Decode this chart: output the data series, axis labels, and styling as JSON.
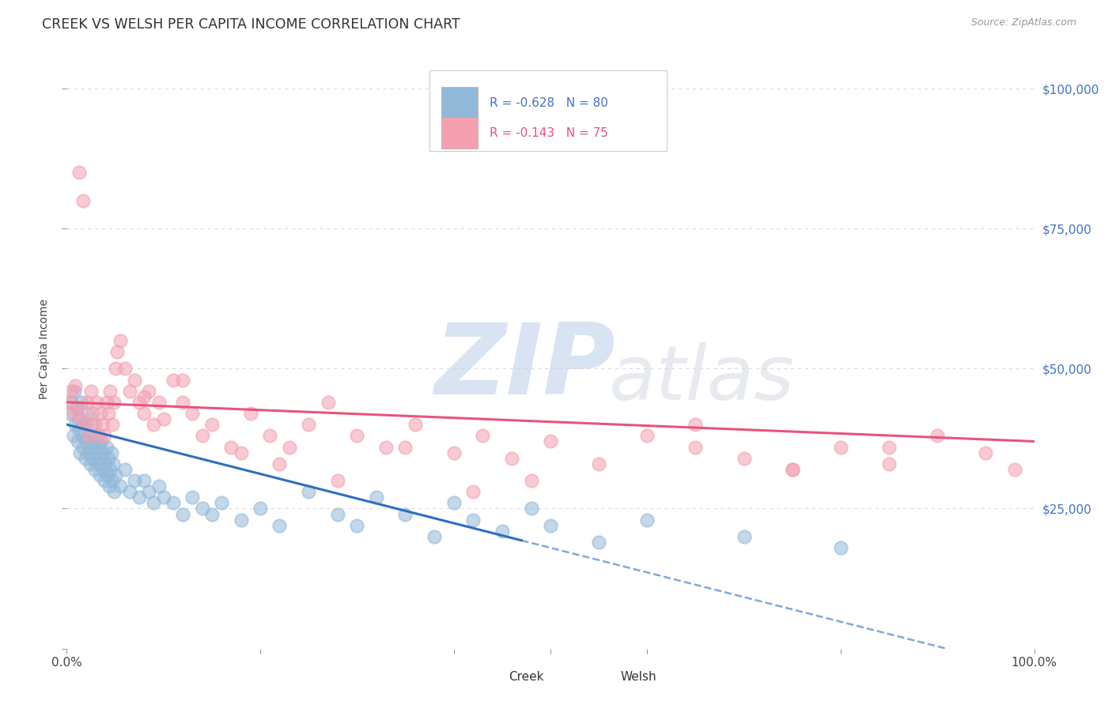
{
  "title": "CREEK VS WELSH PER CAPITA INCOME CORRELATION CHART",
  "source": "Source: ZipAtlas.com",
  "ylabel": "Per Capita Income",
  "xlim": [
    0.0,
    1.0
  ],
  "ylim": [
    0,
    107000
  ],
  "yticks": [
    0,
    25000,
    50000,
    75000,
    100000
  ],
  "ytick_labels": [
    "",
    "$25,000",
    "$50,000",
    "$75,000",
    "$100,000"
  ],
  "creek_color": "#92b8d8",
  "welsh_color": "#f4a0b0",
  "creek_line_color": "#2f6fbf",
  "welsh_line_color": "#e8547a",
  "creek_R": -0.628,
  "creek_N": 80,
  "welsh_R": -0.143,
  "welsh_N": 75,
  "background_color": "#ffffff",
  "grid_color": "#cccccc",
  "watermark_zip": "ZIP",
  "watermark_atlas": "atlas",
  "creek_scatter_x": [
    0.003,
    0.005,
    0.007,
    0.008,
    0.009,
    0.01,
    0.011,
    0.012,
    0.013,
    0.014,
    0.015,
    0.016,
    0.017,
    0.018,
    0.019,
    0.02,
    0.021,
    0.022,
    0.023,
    0.024,
    0.025,
    0.026,
    0.027,
    0.028,
    0.029,
    0.03,
    0.031,
    0.032,
    0.033,
    0.034,
    0.035,
    0.036,
    0.037,
    0.038,
    0.039,
    0.04,
    0.041,
    0.042,
    0.043,
    0.044,
    0.045,
    0.046,
    0.047,
    0.048,
    0.049,
    0.05,
    0.055,
    0.06,
    0.065,
    0.07,
    0.075,
    0.08,
    0.085,
    0.09,
    0.095,
    0.1,
    0.11,
    0.12,
    0.13,
    0.14,
    0.15,
    0.16,
    0.18,
    0.2,
    0.22,
    0.25,
    0.28,
    0.3,
    0.32,
    0.35,
    0.38,
    0.4,
    0.42,
    0.45,
    0.48,
    0.5,
    0.55,
    0.6,
    0.7,
    0.8
  ],
  "creek_scatter_y": [
    42000,
    44000,
    38000,
    46000,
    40000,
    43000,
    37000,
    41000,
    39000,
    35000,
    44000,
    38000,
    36000,
    40000,
    34000,
    37000,
    42000,
    35000,
    38000,
    33000,
    36000,
    40000,
    34000,
    37000,
    32000,
    35000,
    38000,
    33000,
    36000,
    31000,
    34000,
    37000,
    32000,
    35000,
    30000,
    33000,
    36000,
    31000,
    34000,
    29000,
    32000,
    35000,
    30000,
    33000,
    28000,
    31000,
    29000,
    32000,
    28000,
    30000,
    27000,
    30000,
    28000,
    26000,
    29000,
    27000,
    26000,
    24000,
    27000,
    25000,
    24000,
    26000,
    23000,
    25000,
    22000,
    28000,
    24000,
    22000,
    27000,
    24000,
    20000,
    26000,
    23000,
    21000,
    25000,
    22000,
    19000,
    23000,
    20000,
    18000
  ],
  "welsh_scatter_x": [
    0.003,
    0.005,
    0.007,
    0.009,
    0.011,
    0.013,
    0.015,
    0.017,
    0.019,
    0.021,
    0.023,
    0.025,
    0.027,
    0.029,
    0.031,
    0.033,
    0.035,
    0.037,
    0.039,
    0.041,
    0.043,
    0.045,
    0.047,
    0.049,
    0.052,
    0.055,
    0.06,
    0.065,
    0.07,
    0.075,
    0.08,
    0.085,
    0.09,
    0.095,
    0.1,
    0.11,
    0.12,
    0.13,
    0.14,
    0.15,
    0.17,
    0.19,
    0.21,
    0.23,
    0.25,
    0.27,
    0.3,
    0.33,
    0.36,
    0.4,
    0.43,
    0.46,
    0.5,
    0.55,
    0.6,
    0.65,
    0.7,
    0.75,
    0.8,
    0.85,
    0.9,
    0.95,
    0.98,
    0.18,
    0.22,
    0.28,
    0.35,
    0.42,
    0.48,
    0.65,
    0.75,
    0.85,
    0.05,
    0.08,
    0.12
  ],
  "welsh_scatter_y": [
    44000,
    46000,
    42000,
    47000,
    43000,
    85000,
    41000,
    80000,
    40000,
    44000,
    38000,
    46000,
    42000,
    40000,
    44000,
    38000,
    42000,
    40000,
    38000,
    44000,
    42000,
    46000,
    40000,
    44000,
    53000,
    55000,
    50000,
    46000,
    48000,
    44000,
    42000,
    46000,
    40000,
    44000,
    41000,
    48000,
    44000,
    42000,
    38000,
    40000,
    36000,
    42000,
    38000,
    36000,
    40000,
    44000,
    38000,
    36000,
    40000,
    35000,
    38000,
    34000,
    37000,
    33000,
    38000,
    36000,
    34000,
    32000,
    36000,
    33000,
    38000,
    35000,
    32000,
    35000,
    33000,
    30000,
    36000,
    28000,
    30000,
    40000,
    32000,
    36000,
    50000,
    45000,
    48000
  ]
}
